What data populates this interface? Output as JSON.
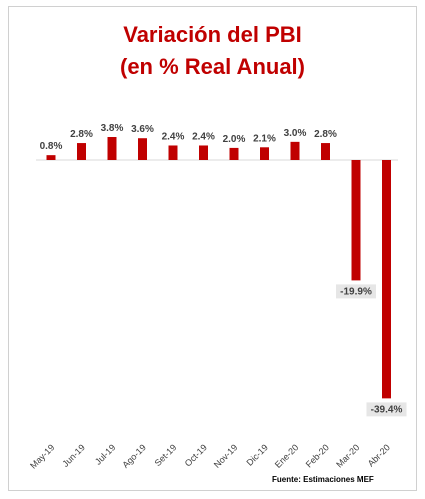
{
  "chart_data": {
    "type": "bar",
    "title": "Variación del PBI",
    "subtitle": "(en % Real Anual)",
    "categories": [
      "May-19",
      "Jun-19",
      "Jul-19",
      "Ago-19",
      "Set-19",
      "Oct-19",
      "Nov-19",
      "Dic-19",
      "Ene-20",
      "Feb-20",
      "Mar-20",
      "Abr-20"
    ],
    "values": [
      0.8,
      2.8,
      3.8,
      3.6,
      2.4,
      2.4,
      2.0,
      2.1,
      3.0,
      2.8,
      -19.9,
      -39.4
    ],
    "data_labels": [
      "0.8%",
      "2.8%",
      "3.8%",
      "3.6%",
      "2.4%",
      "2.4%",
      "2.0%",
      "2.1%",
      "3.0%",
      "2.8%",
      "-19.9%",
      "-39.4%"
    ],
    "xlabel": "",
    "ylabel": "",
    "bar_color": "#c00000",
    "grid": false,
    "legend": "none"
  },
  "source": "Fuente: Estimaciones MEF"
}
